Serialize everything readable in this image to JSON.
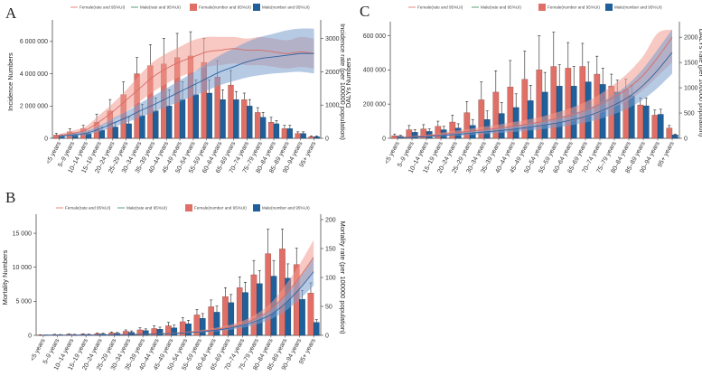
{
  "legend": {
    "female_rate": "Female(rate and 95%UI)",
    "male_rate": "Male(rate and 95%UI)",
    "female_number": "Female(number and 95%UI)",
    "male_number": "Male(number and 95%UI)"
  },
  "colors": {
    "female_bar": "#e07067",
    "male_bar": "#1f5f9a",
    "female_band": "#f29a90",
    "male_band": "#7a9fcd",
    "female_line": "#d96b63",
    "male_line": "#2f64a0"
  },
  "chart_data": [
    {
      "id": "A",
      "panel_label": "A",
      "type": "bar",
      "categories": [
        "<5 years",
        "5–9 years",
        "10–14 years",
        "15–19 years",
        "20–24 years",
        "25–29 years",
        "30–34 years",
        "35–39 years",
        "40–44 years",
        "45–49 years",
        "50–54 years",
        "55–59 years",
        "60–64 years",
        "65–69 years",
        "70–74 years",
        "75–79 years",
        "80–84 years",
        "85–89 years",
        "90–94 years",
        "95+ years"
      ],
      "ylabel": "Incidence Numbers",
      "ylabel_right": "Incidence rate (per 100000 population)",
      "ylim": [
        0,
        7000000
      ],
      "yticks": [
        0,
        2000000,
        4000000,
        6000000
      ],
      "ytick_labels": [
        "0",
        "2 000 000",
        "4 000 000",
        "6 000 000"
      ],
      "ylim_right": [
        0,
        3400
      ],
      "yticks_right": [
        0,
        1000,
        2000,
        3000
      ],
      "ytick_labels_right": [
        "0",
        "1000",
        "2000",
        "3000"
      ],
      "series": [
        {
          "name": "Female(number and 95%UI)",
          "kind": "bar",
          "values": [
            200000,
            400000,
            600000,
            1000000,
            1700000,
            2700000,
            4000000,
            4500000,
            4600000,
            5000000,
            5100000,
            4700000,
            3800000,
            3300000,
            2400000,
            1600000,
            1000000,
            600000,
            300000,
            100000
          ],
          "upper": [
            300000,
            600000,
            800000,
            1500000,
            2400000,
            3500000,
            5000000,
            5800000,
            6200000,
            6500000,
            6600000,
            6200000,
            4800000,
            4200000,
            2800000,
            1900000,
            1300000,
            800000,
            400000,
            150000
          ]
        },
        {
          "name": "Male(number and 95%UI)",
          "kind": "bar",
          "values": [
            150000,
            250000,
            300000,
            500000,
            700000,
            900000,
            1400000,
            1700000,
            2000000,
            2400000,
            2700000,
            2800000,
            2400000,
            2400000,
            2000000,
            1300000,
            900000,
            600000,
            300000,
            100000
          ],
          "upper": [
            220000,
            350000,
            450000,
            700000,
            1000000,
            1300000,
            2100000,
            2500000,
            3000000,
            3500000,
            3600000,
            3600000,
            3000000,
            2900000,
            2400000,
            1600000,
            1100000,
            800000,
            400000,
            150000
          ]
        },
        {
          "name": "Female(rate and 95%UI)",
          "kind": "line",
          "values": [
            80,
            150,
            250,
            500,
            800,
            1150,
            1500,
            1850,
            2100,
            2300,
            2450,
            2600,
            2650,
            2700,
            2650,
            2650,
            2600,
            2550,
            2600,
            2550
          ],
          "lower": [
            40,
            90,
            160,
            330,
            550,
            800,
            1100,
            1400,
            1650,
            1850,
            2000,
            2150,
            2200,
            2250,
            2200,
            2200,
            2150,
            2100,
            2150,
            2100
          ],
          "upper": [
            130,
            230,
            360,
            700,
            1050,
            1450,
            1900,
            2300,
            2550,
            2750,
            2950,
            3050,
            3050,
            3050,
            3000,
            3050,
            3000,
            2950,
            3050,
            3000
          ]
        },
        {
          "name": "Male(rate and 95%UI)",
          "kind": "line",
          "values": [
            60,
            100,
            150,
            280,
            450,
            620,
            820,
            1000,
            1200,
            1400,
            1600,
            1800,
            2000,
            2150,
            2300,
            2400,
            2450,
            2500,
            2550,
            2550
          ],
          "lower": [
            30,
            60,
            100,
            200,
            330,
            470,
            630,
            780,
            950,
            1100,
            1270,
            1430,
            1600,
            1720,
            1830,
            1900,
            1950,
            1980,
            2000,
            1950
          ],
          "upper": [
            100,
            150,
            220,
            380,
            600,
            800,
            1050,
            1270,
            1500,
            1750,
            1980,
            2250,
            2500,
            2700,
            2900,
            3050,
            3150,
            3250,
            3300,
            3300
          ]
        }
      ]
    },
    {
      "id": "B",
      "panel_label": "B",
      "type": "bar",
      "categories": [
        "<5 years",
        "5–9 years",
        "10–14 years",
        "15–19 years",
        "20–24 years",
        "25–29 years",
        "30–34 years",
        "35–39 years",
        "40–44 years",
        "45–49 years",
        "50–54 years",
        "55–59 years",
        "60–64 years",
        "65–69 years",
        "70–74 years",
        "75–79 years",
        "80–84 years",
        "85–89 years",
        "90–94 years",
        "95+ years"
      ],
      "ylabel": "Mortality Numbers",
      "ylabel_right": "Mortality rate (per 100000 population)",
      "ylim": [
        0,
        17000
      ],
      "yticks": [
        0,
        5000,
        10000,
        15000
      ],
      "ytick_labels": [
        "0",
        "5 000",
        "10 000",
        "15 000"
      ],
      "ylim_right": [
        0,
        200
      ],
      "yticks_right": [
        0,
        50,
        100,
        150,
        200
      ],
      "ytick_labels_right": [
        "0",
        "50",
        "100",
        "150",
        "200"
      ],
      "series": [
        {
          "name": "Female(number and 95%UI)",
          "kind": "bar",
          "values": [
            50,
            100,
            150,
            150,
            250,
            350,
            600,
            800,
            1000,
            1400,
            2000,
            3000,
            4200,
            5700,
            7000,
            8900,
            12000,
            12700,
            10400,
            6200
          ],
          "upper": [
            80,
            150,
            200,
            220,
            350,
            500,
            800,
            1100,
            1400,
            1900,
            2600,
            3800,
            5200,
            7000,
            8600,
            11000,
            15600,
            15600,
            12800,
            7700
          ]
        },
        {
          "name": "Male(number and 95%UI)",
          "kind": "bar",
          "values": [
            30,
            80,
            100,
            120,
            200,
            300,
            450,
            700,
            900,
            1100,
            1700,
            2500,
            3400,
            4800,
            6300,
            7600,
            8700,
            8400,
            5300,
            1900
          ],
          "upper": [
            50,
            120,
            150,
            180,
            300,
            420,
            650,
            950,
            1200,
            1500,
            2200,
            3200,
            4300,
            6000,
            7800,
            9500,
            11000,
            10500,
            6600,
            2300
          ]
        },
        {
          "name": "Female(rate and 95%UI)",
          "kind": "line",
          "values": [
            0.5,
            0.3,
            0.4,
            0.5,
            0.7,
            1,
            1.5,
            2,
            2.5,
            3.5,
            5,
            7,
            10,
            14,
            20,
            30,
            45,
            70,
            100,
            135
          ],
          "lower": [
            0.3,
            0.2,
            0.3,
            0.4,
            0.5,
            0.8,
            1.2,
            1.6,
            2,
            2.8,
            4,
            5.5,
            8,
            11,
            16,
            24,
            36,
            55,
            80,
            110
          ],
          "upper": [
            0.7,
            0.5,
            0.5,
            0.7,
            0.9,
            1.3,
            1.9,
            2.5,
            3.1,
            4.3,
            6.2,
            8.7,
            12.5,
            17.5,
            25,
            37,
            56,
            86,
            122,
            165
          ]
        },
        {
          "name": "Male(rate and 95%UI)",
          "kind": "line",
          "values": [
            0.4,
            0.3,
            0.3,
            0.4,
            0.6,
            0.8,
            1.2,
            1.8,
            2.2,
            3,
            4.3,
            6,
            8.5,
            12,
            17,
            25,
            36,
            55,
            80,
            110
          ],
          "lower": [
            0.3,
            0.2,
            0.2,
            0.3,
            0.4,
            0.6,
            0.9,
            1.3,
            1.7,
            2.3,
            3.3,
            4.6,
            6.5,
            9,
            13,
            19,
            28,
            42,
            62,
            86
          ],
          "upper": [
            0.6,
            0.4,
            0.4,
            0.5,
            0.8,
            1,
            1.5,
            2.3,
            2.8,
            3.8,
            5.4,
            7.5,
            10.6,
            15,
            21,
            31,
            45,
            68,
            98,
            134
          ]
        }
      ]
    },
    {
      "id": "C",
      "panel_label": "C",
      "type": "bar",
      "categories": [
        "<5 years",
        "5–9 years",
        "10–14 years",
        "15–19 years",
        "20–24 years",
        "25–29 years",
        "30–34 years",
        "35–39 years",
        "40–44 years",
        "45–49 years",
        "50–54 years",
        "55–59 years",
        "60–64 years",
        "65–69 years",
        "70–74 years",
        "75–79 years",
        "80–84 years",
        "85–89 years",
        "90–94 years",
        "95+ years"
      ],
      "ylabel": "DALYs  Numbers",
      "ylabel_right": "DALYs rate (per 100000 population)",
      "ylim": [
        0,
        650000
      ],
      "yticks": [
        0,
        200000,
        400000,
        600000
      ],
      "ytick_labels": [
        "0",
        "200 000",
        "400 000",
        "600 000"
      ],
      "ylim_right": [
        0,
        2200
      ],
      "yticks_right": [
        0,
        500,
        1000,
        1500,
        2000
      ],
      "ytick_labels_right": [
        "0",
        "500",
        "1000",
        "1500",
        "2000"
      ],
      "series": [
        {
          "name": "Female(number and 95%UI)",
          "kind": "bar",
          "values": [
            15000,
            50000,
            55000,
            70000,
            95000,
            150000,
            225000,
            270000,
            300000,
            345000,
            400000,
            420000,
            410000,
            420000,
            375000,
            305000,
            285000,
            195000,
            135000,
            60000
          ],
          "upper": [
            25000,
            75000,
            80000,
            100000,
            135000,
            215000,
            330000,
            395000,
            455000,
            510000,
            600000,
            620000,
            560000,
            555000,
            480000,
            375000,
            345000,
            235000,
            165000,
            75000
          ]
        },
        {
          "name": "Male(number and 95%UI)",
          "kind": "bar",
          "values": [
            12000,
            35000,
            40000,
            50000,
            60000,
            75000,
            110000,
            145000,
            180000,
            220000,
            270000,
            305000,
            305000,
            330000,
            315000,
            270000,
            250000,
            190000,
            140000,
            20000
          ],
          "upper": [
            18000,
            50000,
            55000,
            70000,
            85000,
            110000,
            160000,
            210000,
            260000,
            310000,
            385000,
            430000,
            420000,
            445000,
            410000,
            340000,
            310000,
            235000,
            170000,
            25000
          ]
        },
        {
          "name": "Female(rate and 95%UI)",
          "kind": "line",
          "values": [
            10,
            30,
            50,
            80,
            110,
            140,
            170,
            200,
            240,
            280,
            330,
            390,
            460,
            550,
            670,
            820,
            1000,
            1250,
            1600,
            2000
          ],
          "lower": [
            5,
            15,
            30,
            50,
            70,
            95,
            120,
            140,
            170,
            200,
            240,
            290,
            340,
            410,
            500,
            620,
            760,
            960,
            1230,
            1500
          ],
          "upper": [
            18,
            45,
            70,
            110,
            150,
            190,
            230,
            270,
            320,
            370,
            430,
            510,
            600,
            720,
            870,
            1070,
            1310,
            1630,
            2080,
            2150
          ]
        },
        {
          "name": "Male(rate and 95%UI)",
          "kind": "line",
          "values": [
            8,
            20,
            35,
            55,
            75,
            100,
            125,
            150,
            180,
            215,
            255,
            300,
            360,
            430,
            530,
            660,
            820,
            1050,
            1350,
            1700
          ],
          "lower": [
            4,
            10,
            20,
            35,
            50,
            65,
            85,
            105,
            125,
            150,
            180,
            215,
            260,
            310,
            385,
            480,
            600,
            770,
            1000,
            1280
          ],
          "upper": [
            14,
            32,
            52,
            78,
            105,
            140,
            170,
            205,
            245,
            290,
            340,
            400,
            480,
            570,
            700,
            870,
            1080,
            1380,
            1760,
            2150
          ]
        }
      ]
    }
  ]
}
